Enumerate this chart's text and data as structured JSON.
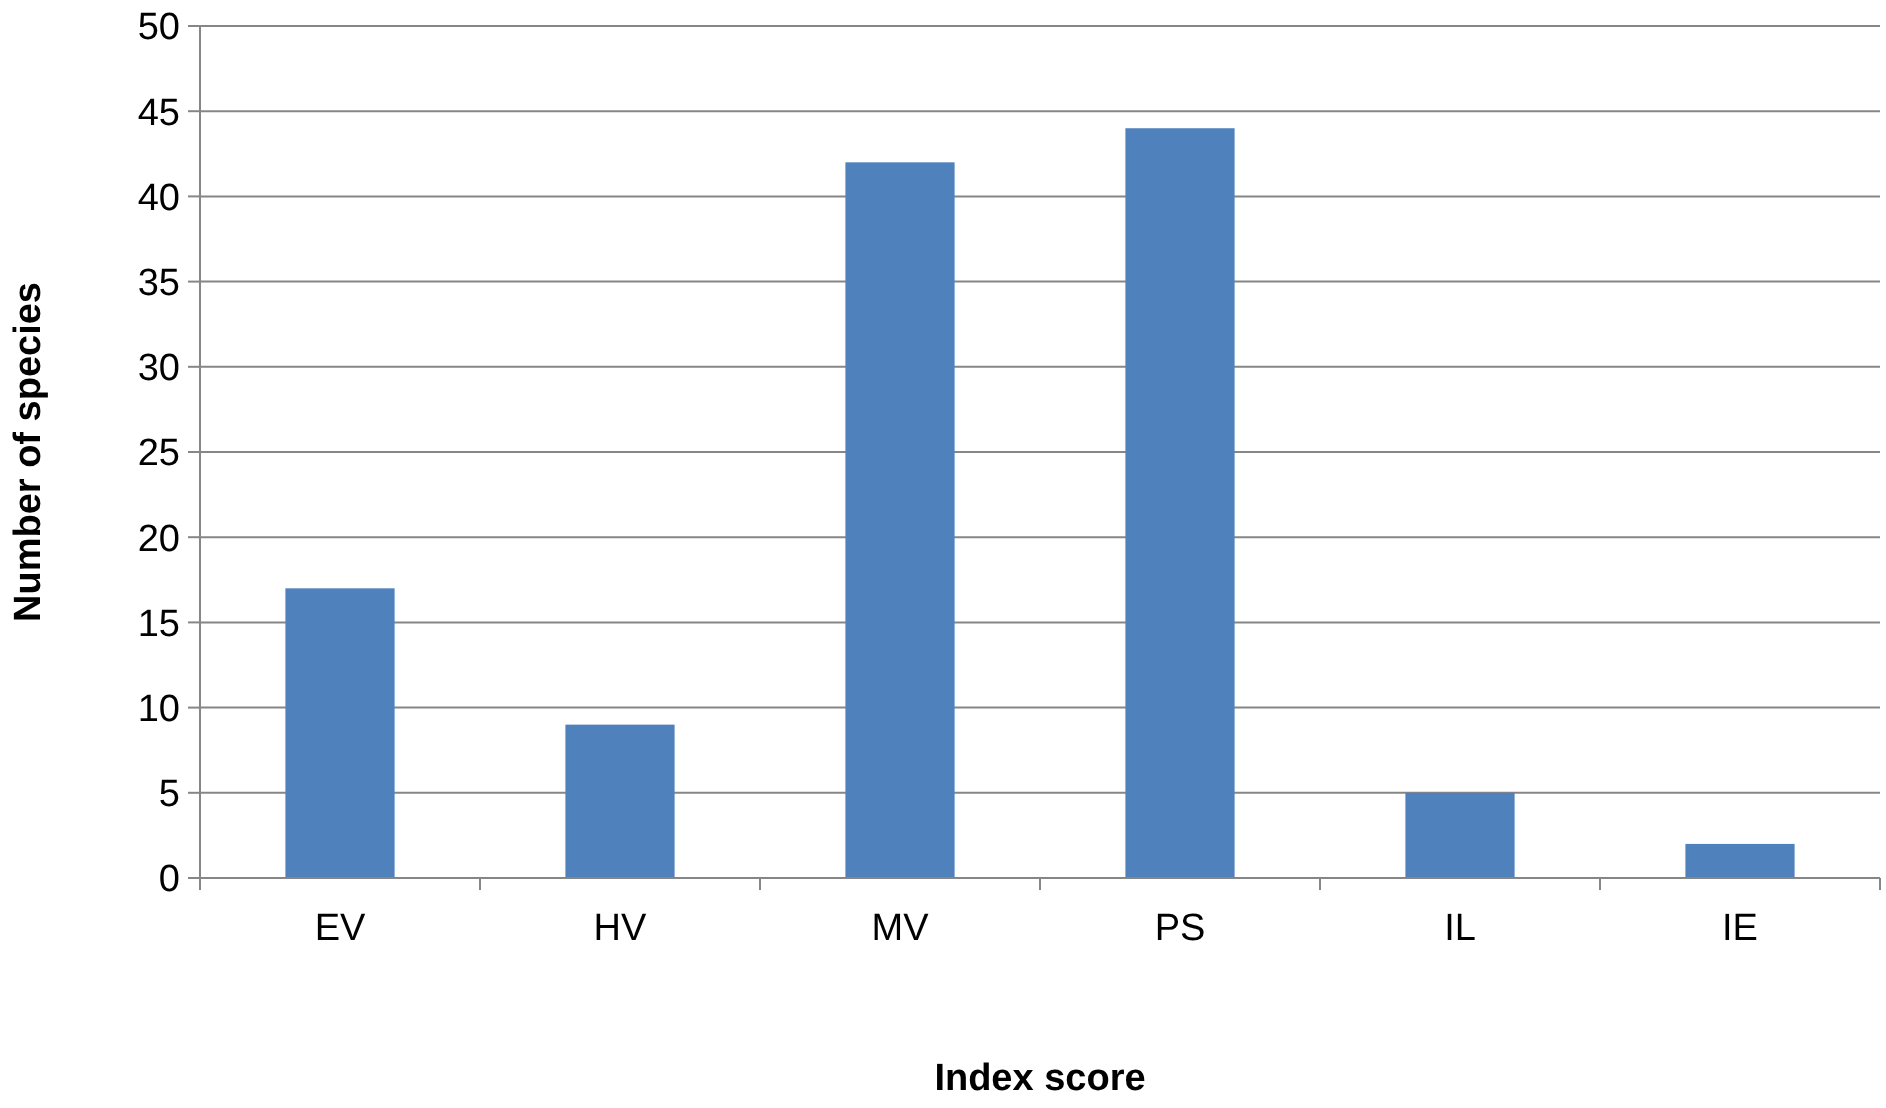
{
  "chart_data": {
    "type": "bar",
    "xlabel": "Index score",
    "ylabel": "Number of species",
    "categories": [
      "EV",
      "HV",
      "MV",
      "PS",
      "IL",
      "IE"
    ],
    "values": [
      17,
      9,
      42,
      44,
      5,
      2
    ],
    "color": "#4f81bd",
    "ylim": [
      0,
      50
    ],
    "yticks": [
      0,
      5,
      10,
      15,
      20,
      25,
      30,
      35,
      40,
      45,
      50
    ],
    "grid": "y"
  }
}
